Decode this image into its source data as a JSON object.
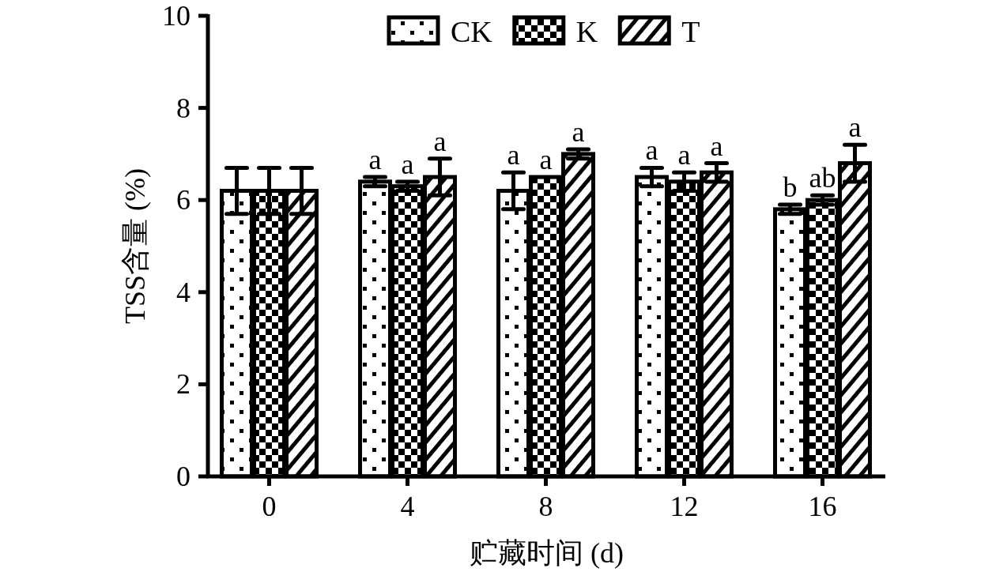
{
  "chart_data": {
    "type": "bar",
    "xlabel": "贮藏时间 (d)",
    "ylabel": "TSS含量 (%)",
    "categories": [
      "0",
      "4",
      "8",
      "12",
      "16"
    ],
    "series": [
      {
        "name": "CK",
        "color": "#000000",
        "values": [
          6.2,
          6.4,
          6.2,
          6.5,
          5.8
        ],
        "errors": [
          0.5,
          0.1,
          0.4,
          0.2,
          0.1
        ],
        "value_labels": [
          null,
          "a",
          "a",
          "a",
          "b"
        ]
      },
      {
        "name": "K",
        "color": "#000000",
        "values": [
          6.2,
          6.3,
          6.5,
          6.4,
          6.0
        ],
        "errors": [
          0.5,
          0.1,
          null,
          0.2,
          0.1
        ],
        "value_labels": [
          null,
          "a",
          "a",
          "a",
          "ab"
        ]
      },
      {
        "name": "T",
        "color": "#000000",
        "values": [
          6.2,
          6.5,
          7.0,
          6.6,
          6.8
        ],
        "errors": [
          0.5,
          0.4,
          0.1,
          0.2,
          0.4
        ],
        "value_labels": [
          null,
          "a",
          "a",
          "a",
          "a"
        ]
      }
    ],
    "ylim": [
      0,
      10
    ],
    "yticks": [
      0,
      2,
      4,
      6,
      8,
      10
    ],
    "legend": "top",
    "grid": false
  }
}
